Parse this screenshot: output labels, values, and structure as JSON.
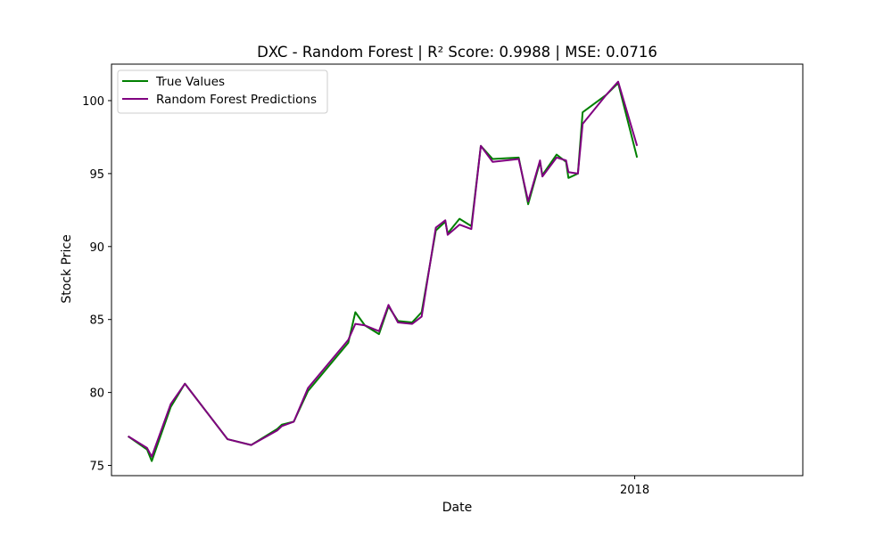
{
  "chart_data": {
    "type": "line",
    "title": "DXC - Random Forest | R² Score: 0.9988 | MSE: 0.0716",
    "xlabel": "Date",
    "ylabel": "Stock Price",
    "xlim": [
      "2017-05-25",
      "2018-03-13"
    ],
    "ylim": [
      74.3,
      102.5
    ],
    "x_ticks": [
      {
        "date": "2018-01-01",
        "label": "2018"
      }
    ],
    "y_ticks": [
      75,
      80,
      85,
      90,
      95,
      100
    ],
    "grid": false,
    "legend_placement": "top-left",
    "series": [
      {
        "name": "True Values",
        "color": "#008000",
        "points": [
          [
            "2017-06-01",
            77.0
          ],
          [
            "2017-06-08",
            76.2
          ],
          [
            "2017-06-09",
            76.1
          ],
          [
            "2017-06-11",
            75.3
          ],
          [
            "2017-06-19",
            79.0
          ],
          [
            "2017-06-25",
            80.6
          ],
          [
            "2017-07-13",
            76.8
          ],
          [
            "2017-07-23",
            76.4
          ],
          [
            "2017-08-03",
            77.5
          ],
          [
            "2017-08-05",
            77.8
          ],
          [
            "2017-08-10",
            78.0
          ],
          [
            "2017-08-16",
            80.1
          ],
          [
            "2017-09-02",
            83.4
          ],
          [
            "2017-09-05",
            85.5
          ],
          [
            "2017-09-09",
            84.6
          ],
          [
            "2017-09-15",
            84.0
          ],
          [
            "2017-09-19",
            85.9
          ],
          [
            "2017-09-23",
            84.9
          ],
          [
            "2017-09-29",
            84.8
          ],
          [
            "2017-10-03",
            85.5
          ],
          [
            "2017-10-09",
            91.1
          ],
          [
            "2017-10-13",
            91.7
          ],
          [
            "2017-10-14",
            90.9
          ],
          [
            "2017-10-19",
            91.9
          ],
          [
            "2017-10-24",
            91.4
          ],
          [
            "2017-10-28",
            96.9
          ],
          [
            "2017-11-02",
            96.0
          ],
          [
            "2017-11-13",
            96.1
          ],
          [
            "2017-11-17",
            92.9
          ],
          [
            "2017-11-22",
            95.8
          ],
          [
            "2017-11-23",
            94.9
          ],
          [
            "2017-11-29",
            96.3
          ],
          [
            "2017-12-03",
            95.8
          ],
          [
            "2017-12-04",
            94.7
          ],
          [
            "2017-12-08",
            95.0
          ],
          [
            "2017-12-10",
            99.2
          ],
          [
            "2017-12-20",
            100.4
          ],
          [
            "2017-12-25",
            101.2
          ],
          [
            "2018-01-02",
            96.1
          ]
        ]
      },
      {
        "name": "Random Forest Predictions",
        "color": "#800080",
        "points": [
          [
            "2017-06-01",
            77.0
          ],
          [
            "2017-06-08",
            76.3
          ],
          [
            "2017-06-09",
            76.2
          ],
          [
            "2017-06-11",
            75.6
          ],
          [
            "2017-06-19",
            79.2
          ],
          [
            "2017-06-25",
            80.6
          ],
          [
            "2017-07-13",
            76.8
          ],
          [
            "2017-07-23",
            76.4
          ],
          [
            "2017-08-03",
            77.4
          ],
          [
            "2017-08-05",
            77.7
          ],
          [
            "2017-08-10",
            78.0
          ],
          [
            "2017-08-16",
            80.3
          ],
          [
            "2017-09-02",
            83.6
          ],
          [
            "2017-09-05",
            84.7
          ],
          [
            "2017-09-09",
            84.6
          ],
          [
            "2017-09-15",
            84.2
          ],
          [
            "2017-09-19",
            86.0
          ],
          [
            "2017-09-23",
            84.8
          ],
          [
            "2017-09-29",
            84.7
          ],
          [
            "2017-10-03",
            85.2
          ],
          [
            "2017-10-09",
            91.3
          ],
          [
            "2017-10-13",
            91.8
          ],
          [
            "2017-10-14",
            90.8
          ],
          [
            "2017-10-19",
            91.5
          ],
          [
            "2017-10-24",
            91.2
          ],
          [
            "2017-10-28",
            96.9
          ],
          [
            "2017-11-02",
            95.8
          ],
          [
            "2017-11-13",
            96.0
          ],
          [
            "2017-11-17",
            93.1
          ],
          [
            "2017-11-22",
            95.9
          ],
          [
            "2017-11-23",
            94.8
          ],
          [
            "2017-11-29",
            96.1
          ],
          [
            "2017-12-03",
            95.9
          ],
          [
            "2017-12-04",
            95.1
          ],
          [
            "2017-12-08",
            95.0
          ],
          [
            "2017-12-10",
            98.4
          ],
          [
            "2017-12-20",
            100.4
          ],
          [
            "2017-12-25",
            101.3
          ],
          [
            "2018-01-02",
            96.9
          ]
        ]
      }
    ]
  }
}
